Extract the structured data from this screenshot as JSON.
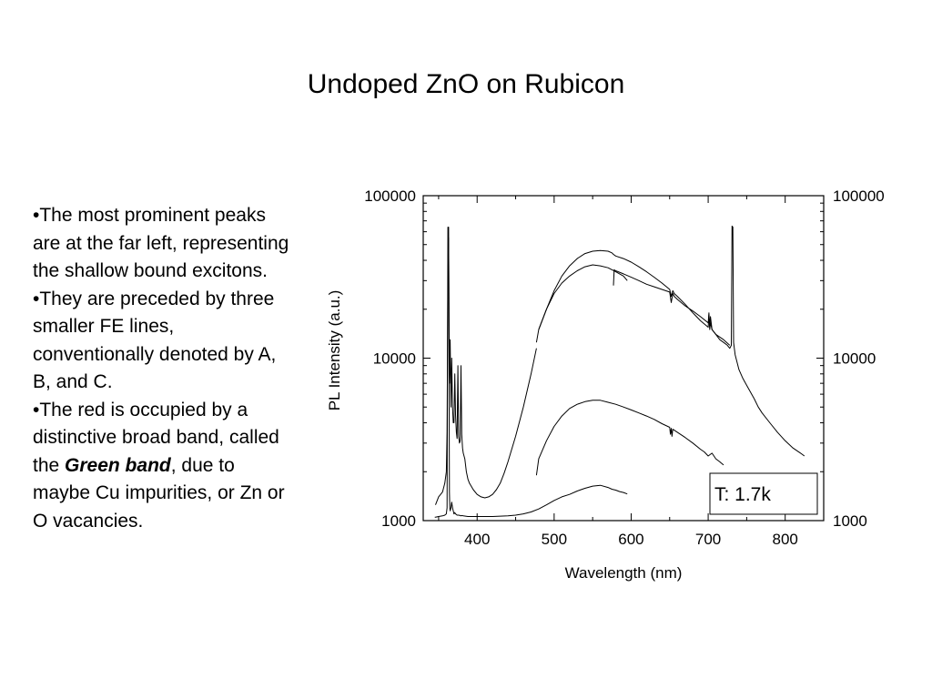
{
  "slide": {
    "title": "Undoped ZnO on Rubicon",
    "bullets": [
      {
        "before": "•The most prominent peaks are at the far left, representing the shallow bound excitons.",
        "emphasis": "",
        "after": ""
      },
      {
        "before": "•They are preceded by three smaller FE lines, conventionally denoted by A, B, and C.",
        "emphasis": "",
        "after": ""
      },
      {
        "before": "•The red is occupied by a distinctive broad band, called the ",
        "emphasis": "Green band",
        "after": ", due to maybe Cu impurities, or Zn or O vacancies."
      }
    ]
  },
  "chart_data": {
    "type": "line",
    "xlabel": "Wavelength (nm)",
    "ylabel": "PL Intensity (a.u.)",
    "xlim": [
      330,
      850
    ],
    "ylim": [
      1000,
      100000
    ],
    "yscale": "log",
    "xticks": [
      400,
      500,
      600,
      700,
      800
    ],
    "yticks": [
      1000,
      10000,
      100000
    ],
    "ytick_labels": [
      "1000",
      "10000",
      "100000"
    ],
    "right_axis_labels": true,
    "grid": false,
    "annotation": "T: 1.7k",
    "line_color": "#000000",
    "series": [
      {
        "x": [
          345,
          346,
          350,
          355,
          358,
          360,
          361,
          362,
          363,
          364,
          364.5,
          365,
          366,
          367,
          368,
          369,
          370,
          371,
          372,
          373,
          374,
          376,
          378,
          379,
          380,
          382,
          385,
          388,
          390,
          392,
          395,
          400,
          410,
          420,
          430,
          440,
          450,
          460,
          470,
          480,
          490,
          500,
          510,
          520,
          530,
          540,
          550,
          560,
          570,
          575,
          580,
          585,
          590,
          595
        ],
        "y": [
          1050,
          1050,
          1060,
          1070,
          1080,
          1100,
          1200,
          64000,
          64000,
          1500,
          1200,
          1150,
          1200,
          1300,
          1200,
          1150,
          1100,
          1120,
          1100,
          1090,
          1080,
          1080,
          1075,
          1070,
          1075,
          1070,
          1065,
          1060,
          1060,
          1060,
          1060,
          1060,
          1060,
          1060,
          1065,
          1070,
          1080,
          1100,
          1130,
          1180,
          1250,
          1330,
          1400,
          1450,
          1520,
          1580,
          1630,
          1650,
          1600,
          1560,
          1540,
          1510,
          1490,
          1460
        ]
      },
      {
        "x": [
          346,
          350,
          355,
          358,
          360,
          361,
          362,
          363,
          364,
          365,
          366,
          367,
          368,
          369,
          370,
          371,
          372,
          373,
          374,
          375,
          376,
          377,
          378,
          379,
          380,
          381,
          382,
          384,
          386,
          388,
          390,
          395,
          400,
          405,
          410,
          415,
          420,
          425,
          430,
          435,
          440,
          450,
          460,
          470,
          477
        ],
        "y": [
          1250,
          1400,
          1500,
          1700,
          2000,
          3500,
          30000,
          55000,
          7000,
          13000,
          5000,
          10000,
          5000,
          4000,
          4000,
          8000,
          4500,
          3500,
          3200,
          9000,
          3300,
          3000,
          3100,
          9000,
          3400,
          2800,
          2600,
          2400,
          2000,
          1800,
          1700,
          1550,
          1450,
          1400,
          1380,
          1400,
          1450,
          1550,
          1700,
          1950,
          2300,
          3300,
          5000,
          8000,
          11500
        ]
      },
      {
        "x": [
          477,
          480,
          490,
          500,
          510,
          520,
          530,
          540,
          550,
          560,
          570,
          580,
          590,
          595
        ],
        "y": [
          12500,
          15000,
          20000,
          25000,
          29000,
          32000,
          34500,
          36500,
          37500,
          37000,
          36000,
          34000,
          32000,
          30000
        ]
      },
      {
        "x": [
          480,
          490,
          500,
          510,
          520,
          530,
          540,
          550,
          560,
          570,
          575,
          577,
          580,
          590,
          600,
          610,
          620,
          630,
          640,
          650,
          652,
          654,
          656,
          660,
          670,
          680,
          690,
          700,
          701,
          702,
          703,
          705,
          710,
          715,
          720,
          725,
          728,
          730,
          731,
          732,
          733,
          735,
          740,
          745,
          750,
          760,
          765,
          770,
          780,
          790,
          800,
          810,
          820,
          825
        ],
        "y": [
          15000,
          20000,
          26000,
          32000,
          37000,
          41000,
          44000,
          45500,
          46000,
          45500,
          44500,
          43500,
          42500,
          41000,
          39000,
          36500,
          34000,
          31500,
          29000,
          26500,
          24000,
          26000,
          25000,
          24000,
          21500,
          19000,
          17000,
          15500,
          18500,
          15000,
          16500,
          15000,
          14000,
          13000,
          12500,
          12000,
          11500,
          12000,
          65000,
          64000,
          12500,
          10500,
          8500,
          7500,
          6800,
          5600,
          5000,
          4600,
          4000,
          3500,
          3100,
          2800,
          2600,
          2500
        ]
      },
      {
        "x": [
          577,
          578,
          580,
          590,
          600,
          610,
          620,
          630,
          640,
          650,
          652,
          654,
          656,
          660,
          670,
          680,
          690,
          700,
          701,
          702,
          703,
          705,
          710,
          720,
          728
        ],
        "y": [
          28000,
          35000,
          34500,
          33000,
          31500,
          30000,
          28500,
          27500,
          26500,
          25500,
          22000,
          25000,
          24000,
          23000,
          21000,
          19500,
          18000,
          16500,
          19000,
          15500,
          18000,
          15000,
          14000,
          13000,
          12000
        ]
      },
      {
        "x": [
          477,
          480,
          490,
          500,
          510,
          520,
          530,
          540,
          550,
          560,
          570,
          580,
          590,
          600,
          610,
          620,
          630,
          640,
          650,
          651,
          652,
          653,
          654,
          660,
          670,
          680,
          690,
          695,
          700,
          705,
          710,
          715,
          720
        ],
        "y": [
          1900,
          2400,
          3100,
          3800,
          4400,
          4900,
          5200,
          5400,
          5500,
          5500,
          5350,
          5200,
          5000,
          4800,
          4600,
          4400,
          4200,
          3950,
          3750,
          3400,
          3700,
          3300,
          3650,
          3500,
          3250,
          3000,
          2750,
          2650,
          2500,
          2600,
          2400,
          2300,
          2200
        ]
      }
    ]
  }
}
